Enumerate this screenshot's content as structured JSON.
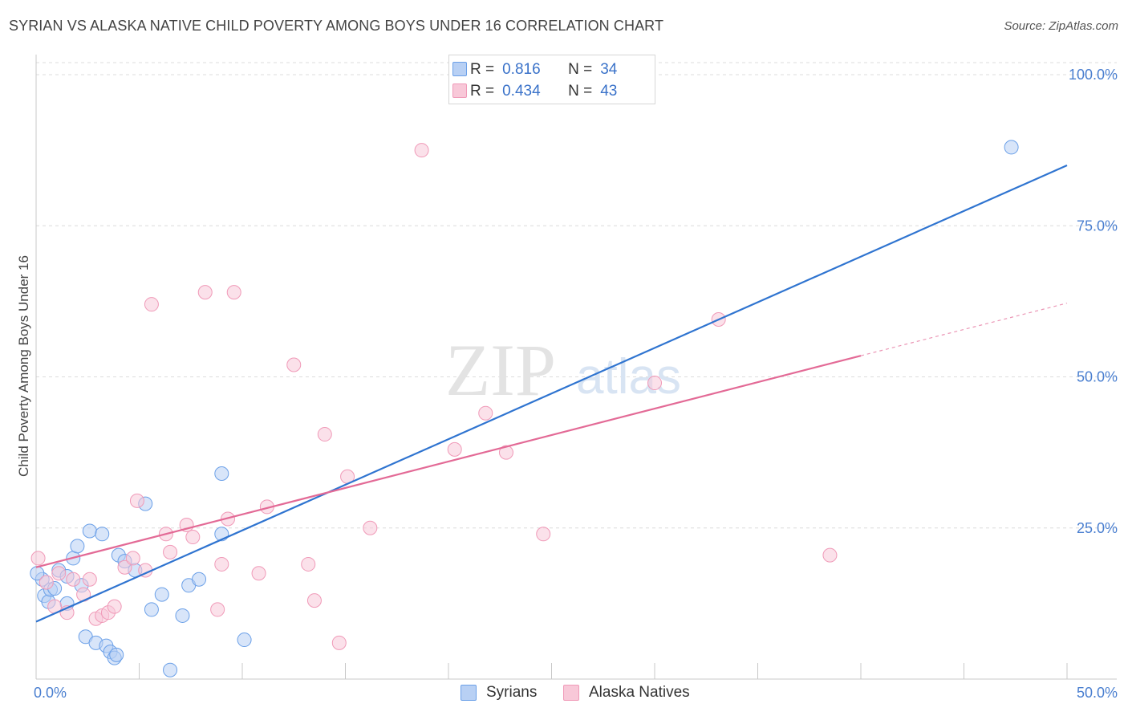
{
  "chart_data": {
    "type": "scatter",
    "title": "SYRIAN VS ALASKA NATIVE CHILD POVERTY AMONG BOYS UNDER 16 CORRELATION CHART",
    "source": "Source: ZipAtlas.com",
    "xlabel": "",
    "ylabel": "Child Poverty Among Boys Under 16",
    "xlim": [
      0,
      50
    ],
    "ylim": [
      0,
      102
    ],
    "x_tick_labels": [
      "0.0%",
      "50.0%"
    ],
    "y_ticks": [
      25,
      50,
      75,
      100
    ],
    "y_tick_labels": [
      "25.0%",
      "50.0%",
      "75.0%",
      "100.0%"
    ],
    "watermark": {
      "main": "ZIP",
      "sub": "atlas"
    },
    "legend": {
      "r_label": "R =",
      "n_label": "N =",
      "rows": [
        {
          "r": "0.816",
          "n": "34"
        },
        {
          "r": "0.434",
          "n": "43"
        }
      ]
    },
    "series": [
      {
        "name": "Syrians",
        "color": "#6ba0e8",
        "fill": "#b8d0f4",
        "line_color": "#2f74d0",
        "trend": {
          "x0": 0,
          "y0": 9.5,
          "x1": 50,
          "y1": 85.0
        },
        "points": [
          [
            0.3,
            16.5
          ],
          [
            0.4,
            13.8
          ],
          [
            0.6,
            12.8
          ],
          [
            0.7,
            14.8
          ],
          [
            0.9,
            15.0
          ],
          [
            1.1,
            18.0
          ],
          [
            1.5,
            17.0
          ],
          [
            1.5,
            12.5
          ],
          [
            1.8,
            20.0
          ],
          [
            2.0,
            22.0
          ],
          [
            2.2,
            15.5
          ],
          [
            2.4,
            7.0
          ],
          [
            2.6,
            24.5
          ],
          [
            2.9,
            6.0
          ],
          [
            3.2,
            24.0
          ],
          [
            3.4,
            5.5
          ],
          [
            3.6,
            4.5
          ],
          [
            3.8,
            3.5
          ],
          [
            3.9,
            4.0
          ],
          [
            4.0,
            20.5
          ],
          [
            4.3,
            19.5
          ],
          [
            4.8,
            18.0
          ],
          [
            5.3,
            29.0
          ],
          [
            5.6,
            11.5
          ],
          [
            6.1,
            14.0
          ],
          [
            6.5,
            1.5
          ],
          [
            7.1,
            10.5
          ],
          [
            7.4,
            15.5
          ],
          [
            7.9,
            16.5
          ],
          [
            9.0,
            34.0
          ],
          [
            9.0,
            24.0
          ],
          [
            10.1,
            6.5
          ],
          [
            47.3,
            88.0
          ],
          [
            0.05,
            17.5
          ]
        ]
      },
      {
        "name": "Alaska Natives",
        "color": "#f09ab8",
        "fill": "#f8c8d8",
        "line_color": "#e36a96",
        "trend": {
          "x0": 0,
          "y0": 18.5,
          "x1": 40,
          "y1": 53.5
        },
        "trend_ext": {
          "x0": 40,
          "y0": 53.5,
          "x1": 50,
          "y1": 62.2
        },
        "points": [
          [
            0.1,
            20.0
          ],
          [
            0.5,
            16.0
          ],
          [
            0.9,
            12.0
          ],
          [
            1.1,
            17.5
          ],
          [
            1.5,
            11.0
          ],
          [
            1.8,
            16.5
          ],
          [
            2.3,
            14.0
          ],
          [
            2.6,
            16.5
          ],
          [
            2.9,
            10.0
          ],
          [
            3.2,
            10.5
          ],
          [
            3.5,
            11.0
          ],
          [
            3.8,
            12.0
          ],
          [
            4.3,
            18.5
          ],
          [
            4.7,
            20.0
          ],
          [
            4.9,
            29.5
          ],
          [
            5.3,
            18.0
          ],
          [
            5.6,
            62.0
          ],
          [
            6.3,
            24.0
          ],
          [
            6.5,
            21.0
          ],
          [
            7.3,
            25.5
          ],
          [
            7.6,
            23.5
          ],
          [
            8.2,
            64.0
          ],
          [
            8.8,
            11.5
          ],
          [
            9.0,
            19.0
          ],
          [
            9.3,
            26.5
          ],
          [
            9.6,
            64.0
          ],
          [
            10.8,
            17.5
          ],
          [
            11.2,
            28.5
          ],
          [
            12.5,
            52.0
          ],
          [
            13.2,
            19.0
          ],
          [
            13.5,
            13.0
          ],
          [
            14.0,
            40.5
          ],
          [
            14.7,
            6.0
          ],
          [
            15.1,
            33.5
          ],
          [
            16.2,
            25.0
          ],
          [
            18.7,
            87.5
          ],
          [
            20.3,
            38.0
          ],
          [
            21.8,
            44.0
          ],
          [
            22.8,
            37.5
          ],
          [
            24.6,
            24.0
          ],
          [
            30.0,
            49.0
          ],
          [
            33.1,
            59.5
          ],
          [
            38.5,
            20.5
          ]
        ]
      }
    ]
  }
}
